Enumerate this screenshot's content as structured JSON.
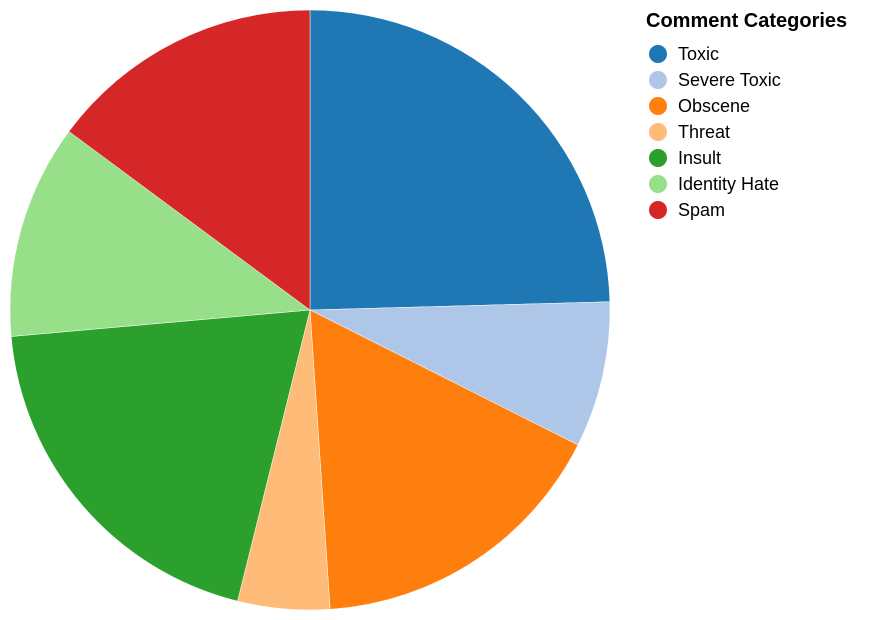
{
  "chart_data": {
    "type": "pie",
    "legend_title": "Comment Categories",
    "legend_position": "top-right",
    "slices": [
      {
        "label": "Toxic",
        "value": 25.3,
        "color": "#1f77b4"
      },
      {
        "label": "Severe Toxic",
        "value": 8.1,
        "color": "#aec7e8"
      },
      {
        "label": "Obscene",
        "value": 17.0,
        "color": "#ff7f0e"
      },
      {
        "label": "Threat",
        "value": 5.1,
        "color": "#ffbb78"
      },
      {
        "label": "Insult",
        "value": 20.3,
        "color": "#2ca02c"
      },
      {
        "label": "Identity Hate",
        "value": 11.9,
        "color": "#98df8a"
      },
      {
        "label": "Spam",
        "value": 15.3,
        "color": "#d62728"
      }
    ]
  }
}
